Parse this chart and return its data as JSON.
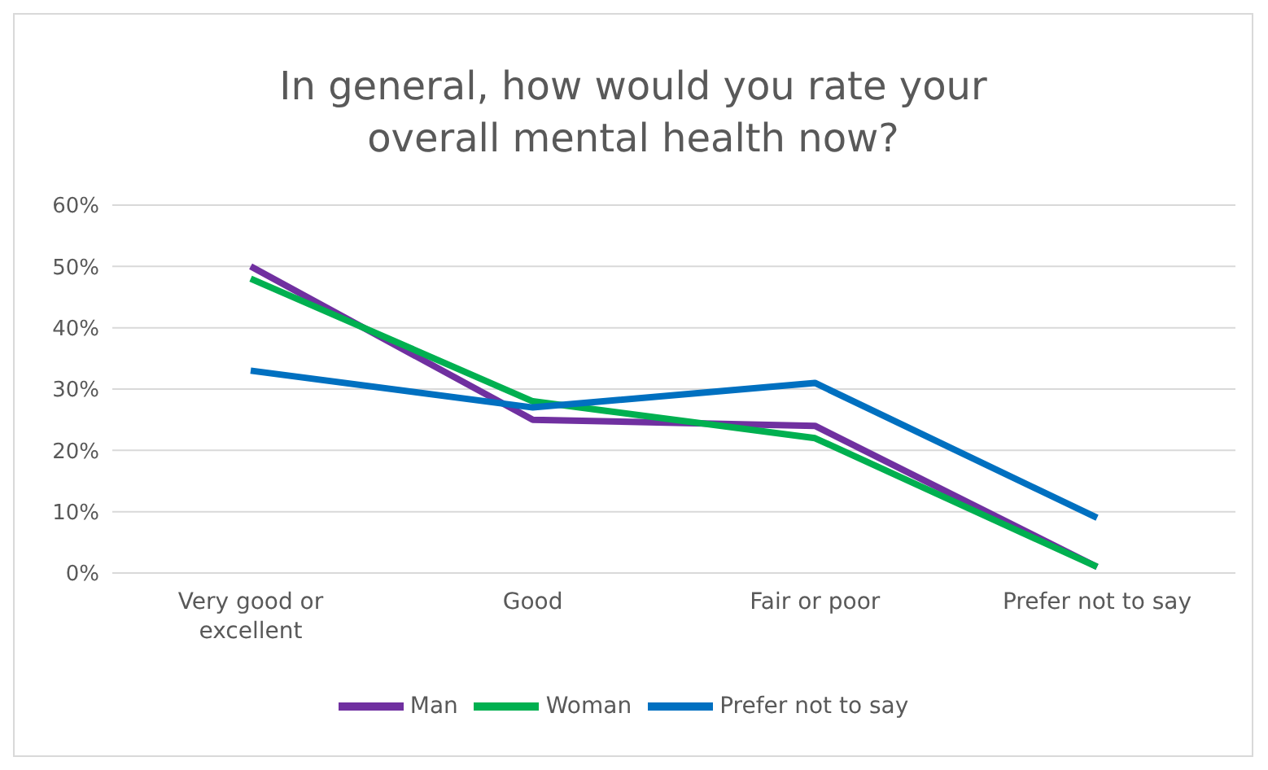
{
  "chart_data": {
    "type": "line",
    "title": "In general, how would you rate your overall mental health now?",
    "categories": [
      "Very good or excellent",
      "Good",
      "Fair or poor",
      "Prefer not to say"
    ],
    "series": [
      {
        "name": "Man",
        "color": "#7030a0",
        "values": [
          50,
          25,
          24,
          1
        ]
      },
      {
        "name": "Woman",
        "color": "#00b050",
        "values": [
          48,
          28,
          22,
          1
        ]
      },
      {
        "name": "Prefer not to say",
        "color": "#0070c0",
        "values": [
          33,
          27,
          31,
          9
        ]
      }
    ],
    "ylim": [
      0,
      60
    ],
    "yticks": [
      {
        "value": 0,
        "label": "0%"
      },
      {
        "value": 10,
        "label": "10%"
      },
      {
        "value": 20,
        "label": "20%"
      },
      {
        "value": 30,
        "label": "30%"
      },
      {
        "value": 40,
        "label": "40%"
      },
      {
        "value": 50,
        "label": "50%"
      },
      {
        "value": 60,
        "label": "60%"
      }
    ],
    "grid": "y",
    "legend": "bottom",
    "marker": "none",
    "line_style": "solid"
  }
}
